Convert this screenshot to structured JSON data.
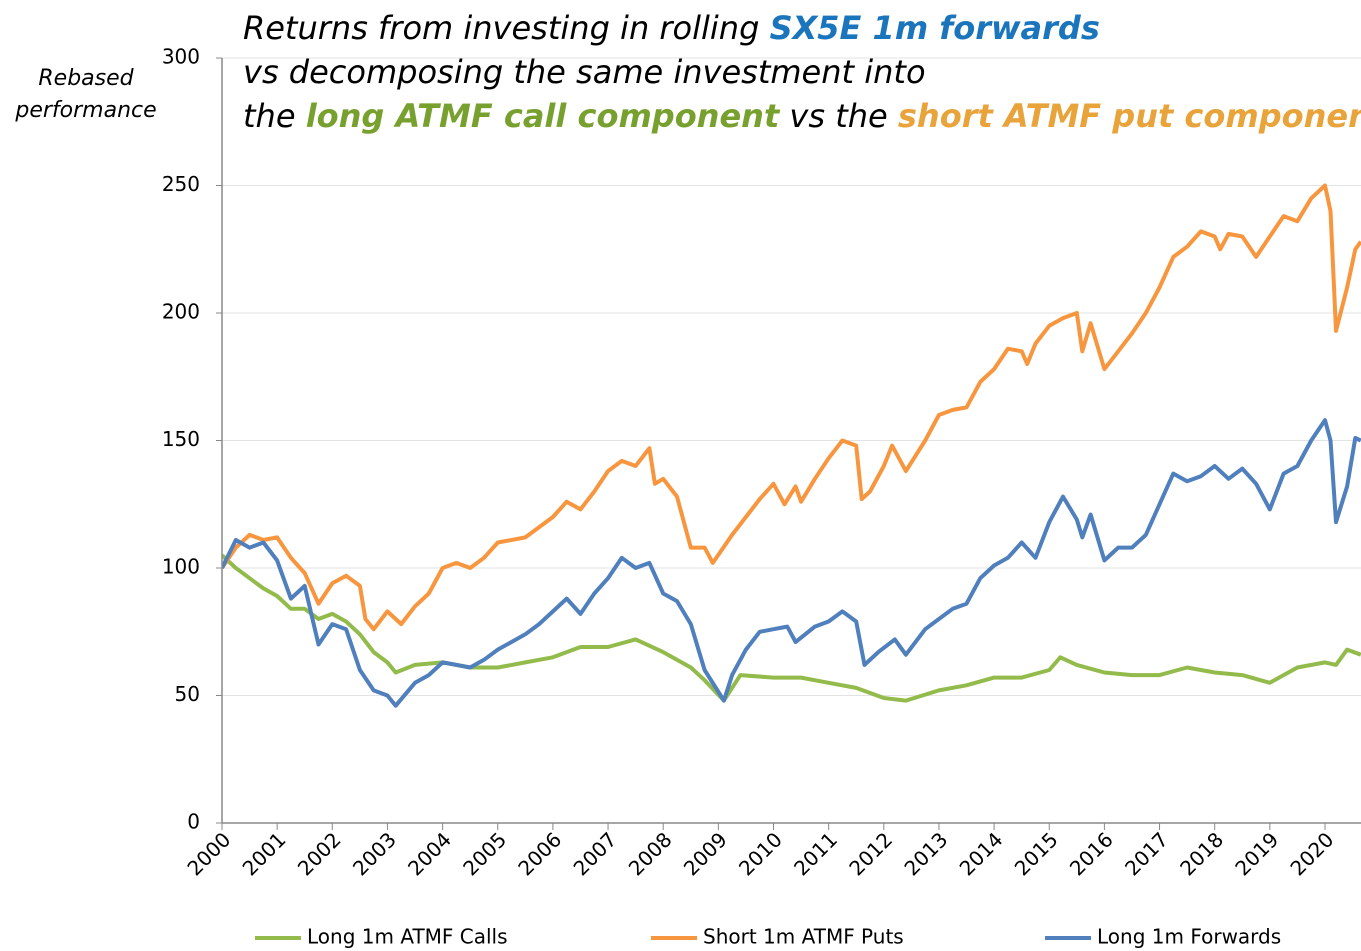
{
  "chart_data": {
    "type": "line",
    "title": [
      [
        {
          "text": "Returns from investing in rolling ",
          "color": "#000000"
        },
        {
          "text": "SX5E 1m forwards",
          "color": "#1b75bc",
          "bold": true
        }
      ],
      [
        {
          "text": "vs decomposing the same investment into",
          "color": "#000000"
        }
      ],
      [
        {
          "text": "the ",
          "color": "#000000"
        },
        {
          "text": "long ATMF call component",
          "color": "#77a02f",
          "bold": true
        },
        {
          "text": " vs the ",
          "color": "#000000"
        },
        {
          "text": "short ATMF put component",
          "color": "#e8a33a",
          "bold": true
        }
      ]
    ],
    "y_label": [
      "Rebased",
      "performance"
    ],
    "xlim": [
      2000,
      2020.65
    ],
    "xticks": [
      2000,
      2001,
      2002,
      2003,
      2004,
      2005,
      2006,
      2007,
      2008,
      2009,
      2010,
      2011,
      2012,
      2013,
      2014,
      2015,
      2016,
      2017,
      2018,
      2019,
      2020
    ],
    "ylim": [
      0,
      300
    ],
    "yticks": [
      0,
      50,
      100,
      150,
      200,
      250,
      300
    ],
    "grid": true,
    "legend": "bottom",
    "series": [
      {
        "name": "Long 1m ATMF Calls",
        "color": "#92bb4c",
        "x": [
          2000,
          2000.25,
          2000.5,
          2000.75,
          2001,
          2001.25,
          2001.5,
          2001.75,
          2002,
          2002.25,
          2002.5,
          2002.75,
          2003,
          2003.15,
          2003.5,
          2004,
          2004.5,
          2005,
          2005.5,
          2006,
          2006.5,
          2007,
          2007.5,
          2008,
          2008.5,
          2008.75,
          2009.1,
          2009.4,
          2010,
          2010.5,
          2011,
          2011.5,
          2012,
          2012.4,
          2013,
          2013.5,
          2014,
          2014.5,
          2015,
          2015.2,
          2015.5,
          2016,
          2016.5,
          2017,
          2017.5,
          2018,
          2018.5,
          2019,
          2019.5,
          2020,
          2020.2,
          2020.4,
          2020.65
        ],
        "values": [
          105,
          100,
          96,
          92,
          89,
          84,
          84,
          80,
          82,
          79,
          74,
          67,
          63,
          59,
          62,
          63,
          61,
          61,
          63,
          65,
          69,
          69,
          72,
          67,
          61,
          56,
          48,
          58,
          57,
          57,
          55,
          53,
          49,
          48,
          52,
          54,
          57,
          57,
          60,
          65,
          62,
          59,
          58,
          58,
          61,
          59,
          58,
          55,
          61,
          63,
          62,
          68,
          66
        ]
      },
      {
        "name": "Short 1m ATMF Puts",
        "color": "#f7963e",
        "x": [
          2000,
          2000.25,
          2000.5,
          2000.75,
          2001,
          2001.25,
          2001.5,
          2001.75,
          2002,
          2002.25,
          2002.5,
          2002.6,
          2002.75,
          2003,
          2003.25,
          2003.5,
          2003.75,
          2004,
          2004.25,
          2004.5,
          2004.75,
          2005,
          2005.5,
          2006,
          2006.25,
          2006.5,
          2006.75,
          2007,
          2007.25,
          2007.5,
          2007.75,
          2007.85,
          2008,
          2008.25,
          2008.5,
          2008.75,
          2008.9,
          2009.25,
          2009.5,
          2009.75,
          2010,
          2010.2,
          2010.4,
          2010.5,
          2010.75,
          2011,
          2011.25,
          2011.5,
          2011.6,
          2011.75,
          2012,
          2012.15,
          2012.4,
          2012.75,
          2013,
          2013.25,
          2013.5,
          2013.75,
          2014,
          2014.25,
          2014.5,
          2014.6,
          2014.75,
          2015,
          2015.25,
          2015.5,
          2015.6,
          2015.75,
          2016,
          2016.25,
          2016.5,
          2016.75,
          2017,
          2017.25,
          2017.5,
          2017.75,
          2018,
          2018.1,
          2018.25,
          2018.5,
          2018.75,
          2019,
          2019.25,
          2019.5,
          2019.75,
          2020,
          2020.1,
          2020.2,
          2020.4,
          2020.55,
          2020.65
        ],
        "values": [
          100,
          108,
          113,
          111,
          112,
          104,
          98,
          86,
          94,
          97,
          93,
          80,
          76,
          83,
          78,
          85,
          90,
          100,
          102,
          100,
          104,
          110,
          112,
          120,
          126,
          123,
          130,
          138,
          142,
          140,
          147,
          133,
          135,
          128,
          108,
          108,
          102,
          113,
          120,
          127,
          133,
          125,
          132,
          126,
          135,
          143,
          150,
          148,
          127,
          130,
          140,
          148,
          138,
          150,
          160,
          162,
          163,
          173,
          178,
          186,
          185,
          180,
          188,
          195,
          198,
          200,
          185,
          196,
          178,
          185,
          192,
          200,
          210,
          222,
          226,
          232,
          230,
          225,
          231,
          230,
          222,
          230,
          238,
          236,
          245,
          250,
          240,
          193,
          210,
          225,
          228
        ]
      },
      {
        "name": "Long 1m Forwards",
        "color": "#4f7fbc",
        "x": [
          2000,
          2000.25,
          2000.5,
          2000.75,
          2001,
          2001.25,
          2001.5,
          2001.75,
          2002,
          2002.25,
          2002.5,
          2002.75,
          2003,
          2003.15,
          2003.5,
          2003.75,
          2004,
          2004.25,
          2004.5,
          2004.75,
          2005,
          2005.5,
          2005.75,
          2006,
          2006.25,
          2006.5,
          2006.75,
          2007,
          2007.25,
          2007.5,
          2007.75,
          2008,
          2008.25,
          2008.5,
          2008.75,
          2009.1,
          2009.25,
          2009.5,
          2009.75,
          2010,
          2010.25,
          2010.4,
          2010.75,
          2011,
          2011.25,
          2011.5,
          2011.65,
          2011.9,
          2012.2,
          2012.4,
          2012.75,
          2013,
          2013.25,
          2013.5,
          2013.75,
          2014,
          2014.25,
          2014.5,
          2014.75,
          2015,
          2015.25,
          2015.5,
          2015.6,
          2015.75,
          2016,
          2016.25,
          2016.5,
          2016.75,
          2017,
          2017.25,
          2017.5,
          2017.75,
          2018,
          2018.25,
          2018.5,
          2018.75,
          2019,
          2019.25,
          2019.5,
          2019.75,
          2020,
          2020.1,
          2020.2,
          2020.4,
          2020.55,
          2020.65
        ],
        "values": [
          100,
          111,
          108,
          110,
          103,
          88,
          93,
          70,
          78,
          76,
          60,
          52,
          50,
          46,
          55,
          58,
          63,
          62,
          61,
          64,
          68,
          74,
          78,
          83,
          88,
          82,
          90,
          96,
          104,
          100,
          102,
          90,
          87,
          78,
          60,
          48,
          58,
          68,
          75,
          76,
          77,
          71,
          77,
          79,
          83,
          79,
          62,
          67,
          72,
          66,
          76,
          80,
          84,
          86,
          96,
          101,
          104,
          110,
          104,
          118,
          128,
          119,
          112,
          121,
          103,
          108,
          108,
          113,
          125,
          137,
          134,
          136,
          140,
          135,
          139,
          133,
          123,
          137,
          140,
          150,
          158,
          150,
          118,
          132,
          151,
          150
        ]
      }
    ]
  }
}
